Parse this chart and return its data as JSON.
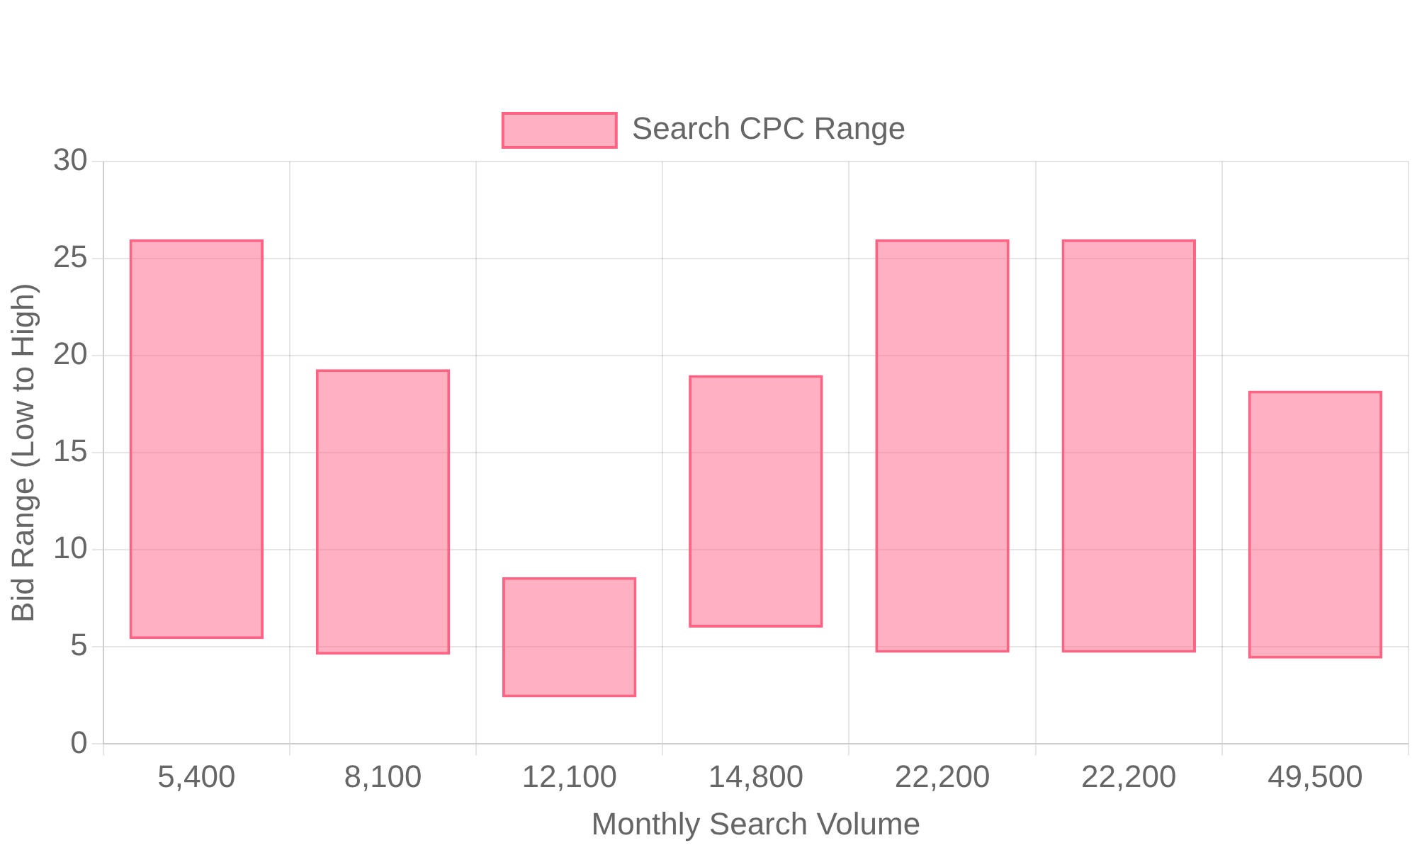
{
  "chart_data": {
    "type": "bar",
    "xlabel": "Monthly Search Volume",
    "ylabel": "Bid Range (Low to High)",
    "categories": [
      "5,400",
      "8,100",
      "12,100",
      "14,800",
      "22,200",
      "22,200",
      "49,500"
    ],
    "series": [
      {
        "name": "Search CPC Range",
        "color": "#ff6384",
        "values": [
          20.6,
          14.7,
          6.2,
          13.0,
          21.3,
          21.3,
          13.8
        ],
        "base": [
          5.4,
          4.6,
          2.4,
          6.0,
          4.7,
          4.7,
          4.4
        ]
      }
    ],
    "ylim": [
      0,
      30
    ],
    "yticks": [
      0,
      5,
      10,
      15,
      20,
      25,
      30
    ],
    "grid": true,
    "legend": "top"
  }
}
